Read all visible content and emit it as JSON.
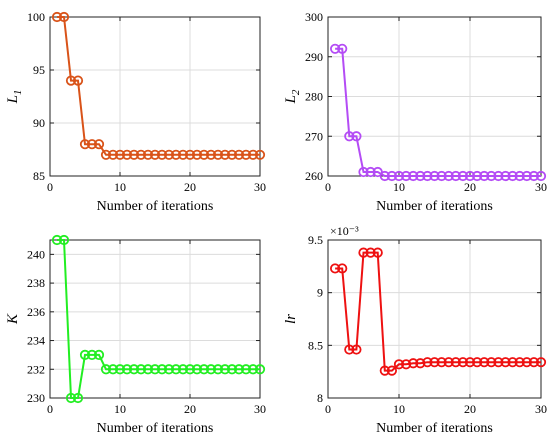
{
  "chart_data": [
    {
      "type": "line",
      "title": "",
      "xlabel": "Number of iterations",
      "ylabel": "L",
      "ylabel_sub": "1",
      "xlim": [
        0,
        30
      ],
      "ylim": [
        85,
        100
      ],
      "xticks": [
        0,
        10,
        20,
        30
      ],
      "yticks": [
        85,
        90,
        95,
        100
      ],
      "grid": true,
      "color": "#d95319",
      "exponent": "",
      "x": [
        1,
        2,
        3,
        4,
        5,
        6,
        7,
        8,
        9,
        10,
        11,
        12,
        13,
        14,
        15,
        16,
        17,
        18,
        19,
        20,
        21,
        22,
        23,
        24,
        25,
        26,
        27,
        28,
        29,
        30
      ],
      "values": [
        100,
        100,
        94,
        94,
        88,
        88,
        88,
        87,
        87,
        87,
        87,
        87,
        87,
        87,
        87,
        87,
        87,
        87,
        87,
        87,
        87,
        87,
        87,
        87,
        87,
        87,
        87,
        87,
        87,
        87
      ]
    },
    {
      "type": "line",
      "title": "",
      "xlabel": "Number of iterations",
      "ylabel": "L",
      "ylabel_sub": "2",
      "xlim": [
        0,
        30
      ],
      "ylim": [
        260,
        300
      ],
      "xticks": [
        0,
        10,
        20,
        30
      ],
      "yticks": [
        260,
        270,
        280,
        290,
        300
      ],
      "grid": true,
      "color": "#b44cf5",
      "exponent": "",
      "x": [
        1,
        2,
        3,
        4,
        5,
        6,
        7,
        8,
        9,
        10,
        11,
        12,
        13,
        14,
        15,
        16,
        17,
        18,
        19,
        20,
        21,
        22,
        23,
        24,
        25,
        26,
        27,
        28,
        29,
        30
      ],
      "values": [
        292,
        292,
        270,
        270,
        261,
        261,
        261,
        260,
        260,
        260,
        260,
        260,
        260,
        260,
        260,
        260,
        260,
        260,
        260,
        260,
        260,
        260,
        260,
        260,
        260,
        260,
        260,
        260,
        260,
        260
      ]
    },
    {
      "type": "line",
      "title": "",
      "xlabel": "Number of iterations",
      "ylabel": "K",
      "ylabel_sub": "",
      "xlim": [
        0,
        30
      ],
      "ylim": [
        230,
        241
      ],
      "xticks": [
        0,
        10,
        20,
        30
      ],
      "yticks": [
        230,
        232,
        234,
        236,
        238,
        240
      ],
      "grid": true,
      "color": "#22ee22",
      "exponent": "",
      "x": [
        1,
        2,
        3,
        4,
        5,
        6,
        7,
        8,
        9,
        10,
        11,
        12,
        13,
        14,
        15,
        16,
        17,
        18,
        19,
        20,
        21,
        22,
        23,
        24,
        25,
        26,
        27,
        28,
        29,
        30
      ],
      "values": [
        241,
        241,
        230,
        230,
        233,
        233,
        233,
        232,
        232,
        232,
        232,
        232,
        232,
        232,
        232,
        232,
        232,
        232,
        232,
        232,
        232,
        232,
        232,
        232,
        232,
        232,
        232,
        232,
        232,
        232
      ]
    },
    {
      "type": "line",
      "title": "",
      "xlabel": "Number of iterations",
      "ylabel": "lr",
      "ylabel_sub": "",
      "xlim": [
        0,
        30
      ],
      "ylim": [
        8,
        9.5
      ],
      "xticks": [
        0,
        10,
        20,
        30
      ],
      "yticks": [
        8,
        8.5,
        9,
        9.5
      ],
      "grid": true,
      "color": "#ee1111",
      "exponent": "×10⁻³",
      "x": [
        1,
        2,
        3,
        4,
        5,
        6,
        7,
        8,
        9,
        10,
        11,
        12,
        13,
        14,
        15,
        16,
        17,
        18,
        19,
        20,
        21,
        22,
        23,
        24,
        25,
        26,
        27,
        28,
        29,
        30
      ],
      "values": [
        9.23,
        9.23,
        8.46,
        8.46,
        9.38,
        9.38,
        9.38,
        8.26,
        8.26,
        8.32,
        8.32,
        8.33,
        8.33,
        8.34,
        8.34,
        8.34,
        8.34,
        8.34,
        8.34,
        8.34,
        8.34,
        8.34,
        8.34,
        8.34,
        8.34,
        8.34,
        8.34,
        8.34,
        8.34,
        8.34
      ]
    }
  ]
}
